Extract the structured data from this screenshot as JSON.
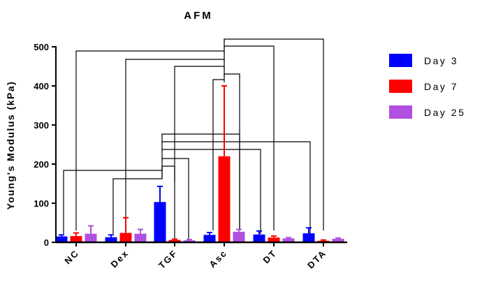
{
  "chart_data": {
    "type": "bar",
    "title": "AFM",
    "xlabel": "",
    "ylabel": "Young's Modulus (kPa)",
    "ylim": [
      0,
      500
    ],
    "yticks": [
      "0",
      "100",
      "200",
      "300",
      "400",
      "500"
    ],
    "categories": [
      "NC",
      "Dex",
      "TGF",
      "Asc",
      "DT",
      "DTA"
    ],
    "legend_position": "right",
    "series": [
      {
        "name": "Day 3",
        "color": "#0000ff",
        "values": [
          15,
          13,
          103,
          19,
          20,
          23
        ],
        "errors": [
          4,
          6,
          40,
          6,
          9,
          14
        ]
      },
      {
        "name": "Day 7",
        "color": "#ff0000",
        "values": [
          16,
          24,
          6,
          220,
          12,
          4
        ],
        "errors": [
          8,
          39,
          2,
          180,
          4,
          2
        ]
      },
      {
        "name": "Day 25",
        "color": "#b050e0",
        "values": [
          22,
          22,
          5,
          27,
          10,
          9
        ],
        "errors": [
          20,
          11,
          2,
          6,
          2,
          2
        ]
      }
    ],
    "significance_brackets": [
      {
        "from": "NC",
        "to": "Asc"
      },
      {
        "from": "Dex",
        "to": "Asc"
      },
      {
        "from": "TGF",
        "to": "Asc"
      },
      {
        "from": "Asc",
        "to": "DT"
      },
      {
        "from": "Asc",
        "to": "DTA"
      },
      {
        "from": "NC",
        "to": "TGF"
      },
      {
        "from": "Dex",
        "to": "TGF"
      },
      {
        "from": "TGF",
        "to": "Asc"
      },
      {
        "from": "TGF",
        "to": "DT"
      },
      {
        "from": "TGF",
        "to": "DTA"
      }
    ]
  }
}
